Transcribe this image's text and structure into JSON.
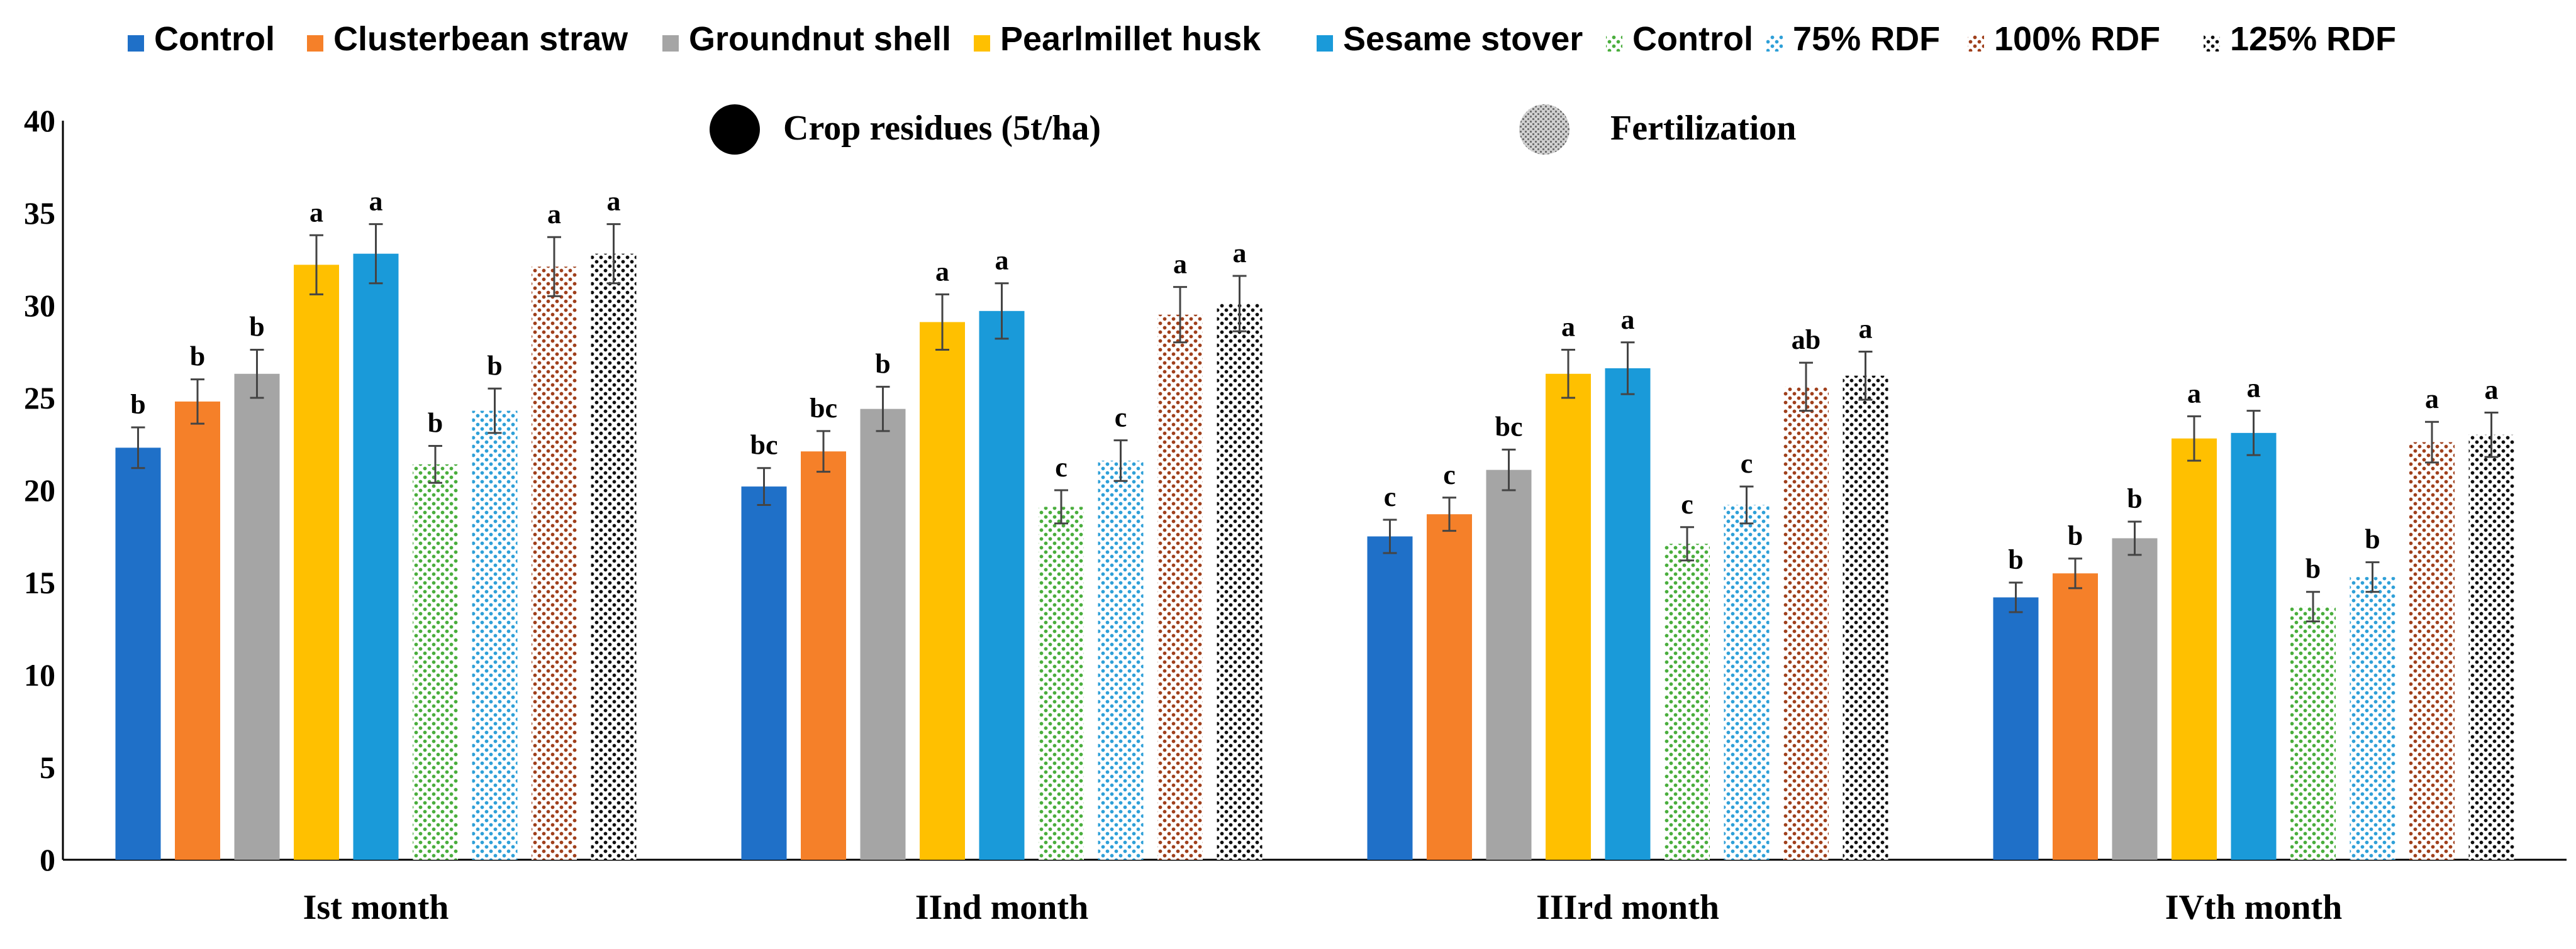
{
  "chart_data": {
    "type": "bar",
    "title": "",
    "xlabel": "",
    "ylabel": "",
    "ylim": [
      0,
      40
    ],
    "yticks": [
      0,
      5,
      10,
      15,
      20,
      25,
      30,
      35,
      40
    ],
    "grid": false,
    "categories": [
      "Ist month",
      "IInd month",
      "IIIrd month",
      "IVth month"
    ],
    "series": [
      {
        "name": "Control",
        "group": "Crop residues (5t/ha)",
        "color": "#1F70C8",
        "pattern": "solid",
        "values": [
          22.3,
          20.2,
          17.5,
          14.2
        ],
        "errors": [
          1.1,
          1.0,
          0.9,
          0.8
        ],
        "letters": [
          "b",
          "bc",
          "c",
          "b"
        ]
      },
      {
        "name": "Clusterbean straw",
        "group": "Crop residues (5t/ha)",
        "color": "#F58029",
        "pattern": "solid",
        "values": [
          24.8,
          22.1,
          18.7,
          15.5
        ],
        "errors": [
          1.2,
          1.1,
          0.9,
          0.8
        ],
        "letters": [
          "b",
          "bc",
          "c",
          "b"
        ]
      },
      {
        "name": "Groundnut shell",
        "group": "Crop residues (5t/ha)",
        "color": "#A5A5A5",
        "pattern": "solid",
        "values": [
          26.3,
          24.4,
          21.1,
          17.4
        ],
        "errors": [
          1.3,
          1.2,
          1.1,
          0.9
        ],
        "letters": [
          "b",
          "b",
          "bc",
          "b"
        ]
      },
      {
        "name": "Pearlmillet husk",
        "group": "Crop residues (5t/ha)",
        "color": "#FFC000",
        "pattern": "solid",
        "values": [
          32.2,
          29.1,
          26.3,
          22.8
        ],
        "errors": [
          1.6,
          1.5,
          1.3,
          1.2
        ],
        "letters": [
          "a",
          "a",
          "a",
          "a"
        ]
      },
      {
        "name": "Sesame stover",
        "group": "Crop residues (5t/ha)",
        "color": "#1A9AD9",
        "pattern": "solid",
        "values": [
          32.8,
          29.7,
          26.6,
          23.1
        ],
        "errors": [
          1.6,
          1.5,
          1.4,
          1.2
        ],
        "letters": [
          "a",
          "a",
          "a",
          "a"
        ]
      },
      {
        "name": "Control",
        "group": "Fertilization",
        "color": "#4AAE3D",
        "pattern": "dots",
        "values": [
          21.4,
          19.1,
          17.1,
          13.7
        ],
        "errors": [
          1.0,
          0.9,
          0.9,
          0.8
        ],
        "letters": [
          "b",
          "c",
          "c",
          "b"
        ]
      },
      {
        "name": "75% RDF",
        "group": "Fertilization",
        "color": "#2FA0D8",
        "pattern": "dots",
        "values": [
          24.3,
          21.6,
          19.2,
          15.3
        ],
        "errors": [
          1.2,
          1.1,
          1.0,
          0.8
        ],
        "letters": [
          "b",
          "c",
          "c",
          "b"
        ]
      },
      {
        "name": "100% RDF",
        "group": "Fertilization",
        "color": "#A0401C",
        "pattern": "dots",
        "values": [
          32.1,
          29.5,
          25.6,
          22.6
        ],
        "errors": [
          1.6,
          1.5,
          1.3,
          1.1
        ],
        "letters": [
          "a",
          "a",
          "ab",
          "a"
        ]
      },
      {
        "name": "125% RDF",
        "group": "Fertilization",
        "color": "#111111",
        "pattern": "dots",
        "values": [
          32.8,
          30.1,
          26.2,
          23.0
        ],
        "errors": [
          1.6,
          1.5,
          1.3,
          1.2
        ],
        "letters": [
          "a",
          "a",
          "a",
          "a"
        ]
      }
    ],
    "group_legend": [
      {
        "label": "Crop residues (5t/ha)",
        "color": "#000000",
        "pattern": "solid"
      },
      {
        "label": "Fertilization",
        "color": "#9A9A9A",
        "pattern": "hatch"
      }
    ],
    "legend_position": "top"
  }
}
